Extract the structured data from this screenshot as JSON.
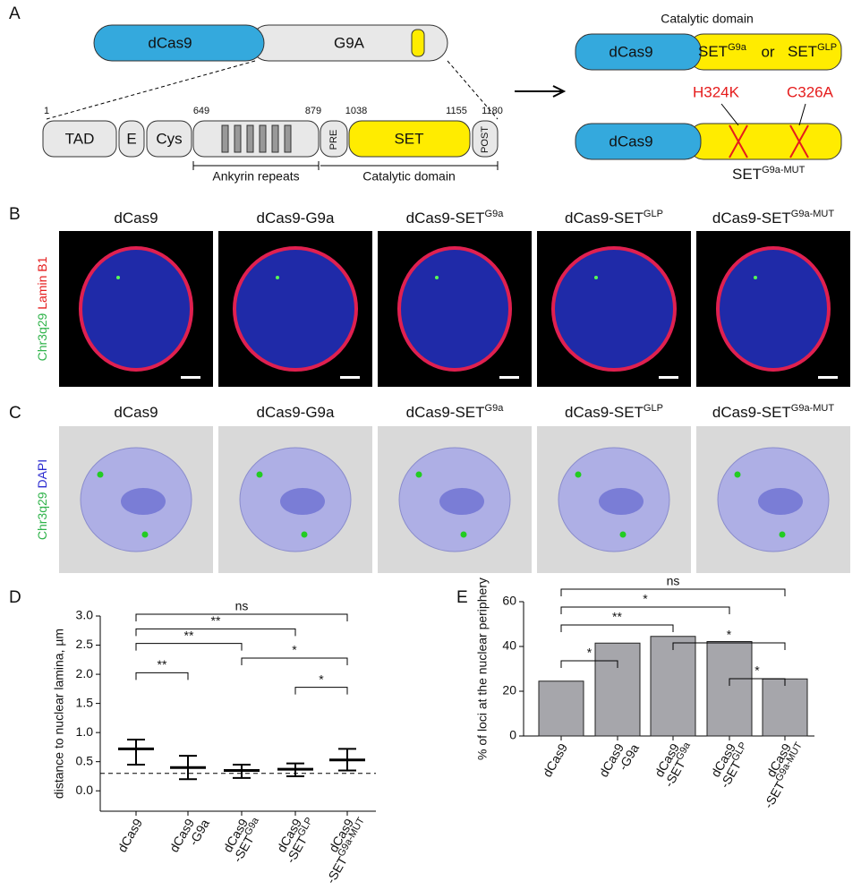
{
  "panel_labels": [
    "A",
    "B",
    "C",
    "D",
    "E"
  ],
  "panel_a": {
    "dcas9": "dCas9",
    "g9a": "G9A",
    "domains": [
      "TAD",
      "E",
      "Cys",
      "PRE",
      "SET",
      "POST"
    ],
    "positions": [
      1,
      649,
      879,
      1038,
      1155,
      1180
    ],
    "regions": [
      "Ankyrin repeats",
      "Catalytic domain"
    ],
    "right": {
      "title": "Catalytic domain",
      "dcas9": "dCas9",
      "set1": "SET",
      "sup1": "G9a",
      "or": "or",
      "set2": "SET",
      "sup2": "GLP",
      "mut1": "H324K",
      "mut2": "C326A",
      "dcas9_b": "dCas9",
      "mut_label": "SET",
      "mut_sup": "G9a-MUT"
    }
  },
  "conditions": [
    [
      "dCas9"
    ],
    [
      "dCas9-G9a"
    ],
    [
      "dCas9-SET",
      "G9a"
    ],
    [
      "dCas9-SET",
      "GLP"
    ],
    [
      "dCas9-SET",
      "G9a-MUT"
    ]
  ],
  "panel_b": {
    "stain1": "Chr3q29",
    "stain2": "Lamin B1"
  },
  "panel_c": {
    "stain1": "Chr3q29",
    "stain2": "DAPI"
  },
  "chart_data": [
    {
      "type": "dot",
      "y_label": "distance to nuclear lamina, µm",
      "categories": [
        [
          "dCas9"
        ],
        [
          "dCas9",
          "-G9a"
        ],
        [
          "dCas9",
          "-SET",
          "G9a"
        ],
        [
          "dCas9",
          "-SET",
          "GLP"
        ],
        [
          "dCas9",
          "-SET",
          "G9a-MUT"
        ]
      ],
      "values": [
        0.72,
        0.4,
        0.35,
        0.37,
        0.53
      ],
      "lower": [
        0.45,
        0.2,
        0.22,
        0.25,
        0.35
      ],
      "upper": [
        0.88,
        0.6,
        0.45,
        0.47,
        0.72
      ],
      "ylim": [
        -0.35,
        3.0
      ],
      "yticks": [
        {
          "value": 0,
          "label": "0.0"
        },
        {
          "value": 0.5,
          "label": "0.5"
        },
        {
          "value": 1,
          "label": "1.0"
        },
        {
          "value": 1.5,
          "label": "1.5"
        },
        {
          "value": 2,
          "label": "2.0"
        },
        {
          "value": 2.5,
          "label": "2.5"
        },
        {
          "value": 3,
          "label": "3.0"
        }
      ],
      "reference_line": 0.3,
      "color": "#888888",
      "significance": [
        {
          "from": 0,
          "to": 4,
          "label": "ns"
        },
        {
          "from": 0,
          "to": 3,
          "label": "**"
        },
        {
          "from": 0,
          "to": 2,
          "label": "**"
        },
        {
          "from": 2,
          "to": 4,
          "label": "*"
        },
        {
          "from": 0,
          "to": 1,
          "label": "**"
        },
        {
          "from": 3,
          "to": 4,
          "label": "*"
        }
      ]
    },
    {
      "type": "bar",
      "y_label": "% of loci at the nuclear periphery",
      "categories": [
        [
          "dCas9"
        ],
        [
          "dCas9",
          "-G9a"
        ],
        [
          "dCas9",
          "-SET",
          "G9a"
        ],
        [
          "dCas9",
          "-SET",
          "GLP"
        ],
        [
          "dCas9",
          "-SET",
          "G9a-MUT"
        ]
      ],
      "values": [
        24.5,
        41.5,
        44.5,
        42.2,
        25.5
      ],
      "color": "#a6a6ab",
      "ylim": [
        0,
        60
      ],
      "yticks": [
        0,
        20,
        40,
        60
      ],
      "significance": [
        {
          "from": 0,
          "to": 4,
          "label": "ns"
        },
        {
          "from": 0,
          "to": 3,
          "label": "*"
        },
        {
          "from": 0,
          "to": 2,
          "label": "**"
        },
        {
          "from": 2,
          "to": 4,
          "label": "*"
        },
        {
          "from": 0,
          "to": 1,
          "label": "*"
        },
        {
          "from": 3,
          "to": 4,
          "label": "*"
        }
      ]
    }
  ]
}
